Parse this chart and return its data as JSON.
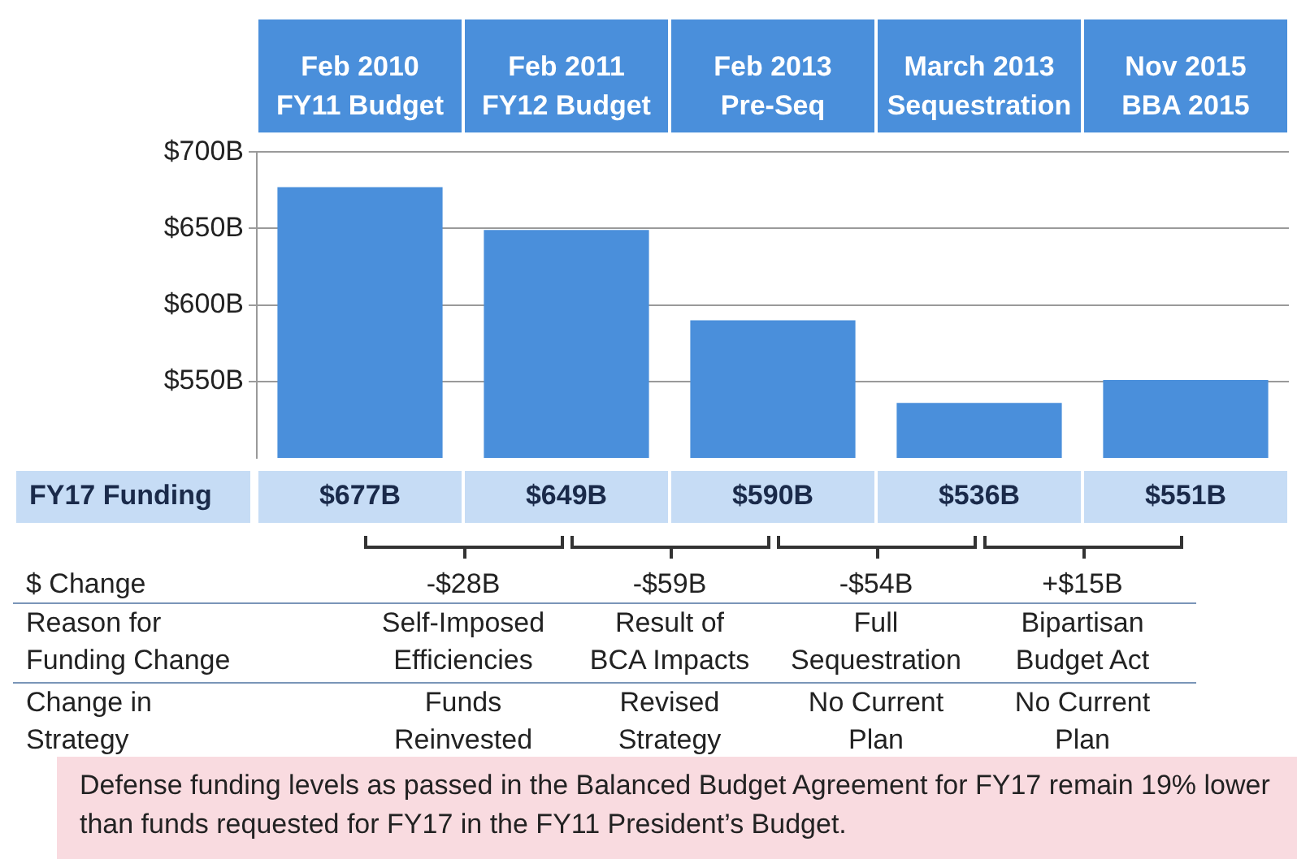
{
  "chart_data": {
    "type": "bar",
    "categories": [
      "Feb 2010\nFY11 Budget",
      "Feb 2011\nFY12 Budget",
      "Feb 2013\nPre-Seq",
      "March 2013\nSequestration",
      "Nov 2015\nBBA 2015"
    ],
    "values": [
      677,
      649,
      590,
      536,
      551
    ],
    "color": "#4a8fdb",
    "value_labels": [
      "$677B",
      "$649B",
      "$590B",
      "$536B",
      "$551B"
    ],
    "ylim": [
      500,
      700
    ],
    "yticks": [
      {
        "value": 550,
        "label": "$550B"
      },
      {
        "value": 600,
        "label": "$600B"
      },
      {
        "value": 650,
        "label": "$650B"
      },
      {
        "value": 700,
        "label": "$700B"
      }
    ],
    "grid": "y",
    "legend": false,
    "annotations": [
      "FY17 Funding",
      "$ Change",
      "Reason for\nFunding Change",
      "Change in\nStrategy",
      "-$28B",
      "-$59B",
      "-$54B",
      "+$15B",
      "Self-Imposed\nEfficiencies",
      "Result of\nBCA Impacts",
      "Full\nSequestration",
      "Bipartisan\nBudget Act",
      "Funds\nReinvested",
      "Revised\nStrategy",
      "No Current\nPlan",
      "No Current\nPlan",
      "Defense funding levels as passed in the Balanced Budget Agreement for FY17 remain 19% lower than funds requested for FY17 in the FY11 President’s Budget."
    ]
  }
}
